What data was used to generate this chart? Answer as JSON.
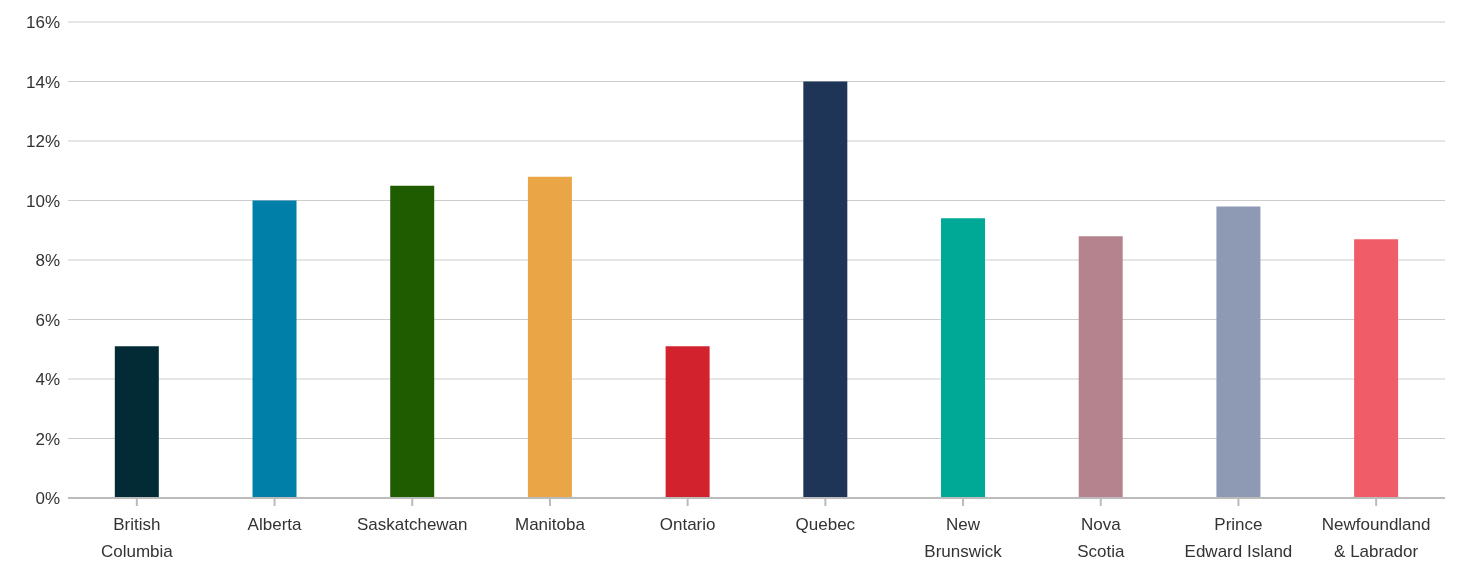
{
  "chart_data": {
    "type": "bar",
    "categories": [
      "British Columbia",
      "Alberta",
      "Saskatchewan",
      "Manitoba",
      "Ontario",
      "Quebec",
      "New Brunswick",
      "Nova Scotia",
      "Prince Edward Island",
      "Newfoundland & Labrador"
    ],
    "values": [
      5.1,
      10.0,
      10.5,
      10.8,
      5.1,
      14.0,
      9.4,
      8.8,
      9.8,
      8.7
    ],
    "colors": [
      "#022b35",
      "#007fa9",
      "#1f5c00",
      "#eaa646",
      "#d2222d",
      "#1e3557",
      "#00a896",
      "#b5838d",
      "#8e9ab3",
      "#f05c68"
    ],
    "ylim": [
      0,
      16
    ],
    "yticks": [
      {
        "value": 0,
        "label": "0%"
      },
      {
        "value": 2,
        "label": "2%"
      },
      {
        "value": 4,
        "label": "4%"
      },
      {
        "value": 6,
        "label": "6%"
      },
      {
        "value": 8,
        "label": "8%"
      },
      {
        "value": 10,
        "label": "10%"
      },
      {
        "value": 12,
        "label": "12%"
      },
      {
        "value": 14,
        "label": "14%"
      },
      {
        "value": 16,
        "label": "16%"
      }
    ],
    "grid": "y"
  }
}
